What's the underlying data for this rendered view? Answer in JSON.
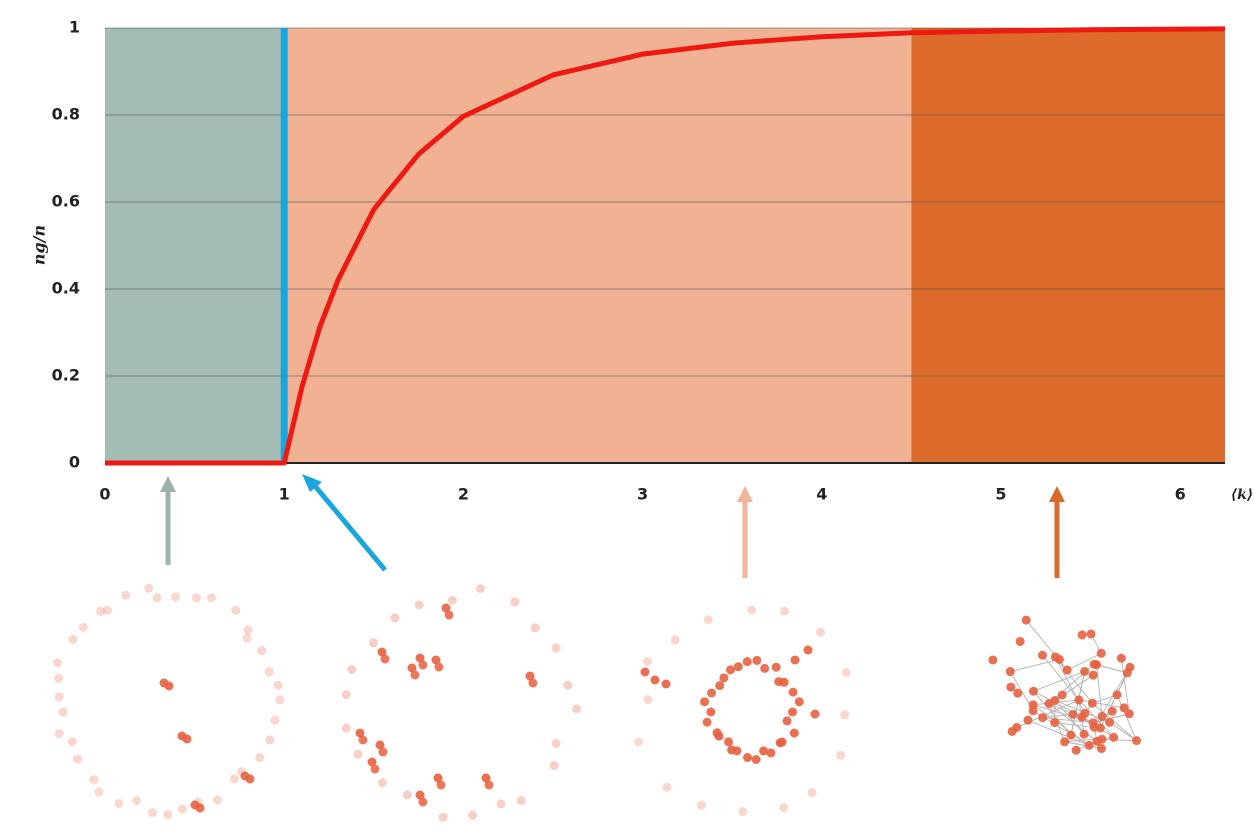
{
  "chart_data": {
    "type": "line",
    "ylabel": "ng/n",
    "xlabel": "⟨k⟩",
    "xlim": [
      0,
      6.25
    ],
    "ylim": [
      0,
      1
    ],
    "xticks": [
      0,
      1,
      2,
      3,
      4,
      5,
      6
    ],
    "yticks": [
      0,
      0.2,
      0.4,
      0.6,
      0.8,
      1
    ],
    "grid": true,
    "regions": [
      {
        "x": [
          0,
          1
        ],
        "color": "#a3bdb6"
      },
      {
        "x": [
          1,
          4.5
        ],
        "color": "#f0b293"
      },
      {
        "x": [
          4.5,
          6.25
        ],
        "color": "#dc6a28"
      }
    ],
    "threshold": {
      "x": 1,
      "color": "#1ba5df"
    },
    "series": [
      {
        "color": "#ee1a12",
        "x": [
          0,
          0.5,
          1,
          1.1,
          1.2,
          1.3,
          1.5,
          1.75,
          2,
          2.5,
          3,
          3.5,
          4,
          4.5,
          5,
          5.5,
          6,
          6.25
        ],
        "values": [
          0,
          0,
          0,
          0.176,
          0.314,
          0.42,
          0.583,
          0.71,
          0.797,
          0.892,
          0.94,
          0.965,
          0.98,
          0.989,
          0.993,
          0.996,
          0.9975,
          0.998
        ]
      }
    ]
  }
}
